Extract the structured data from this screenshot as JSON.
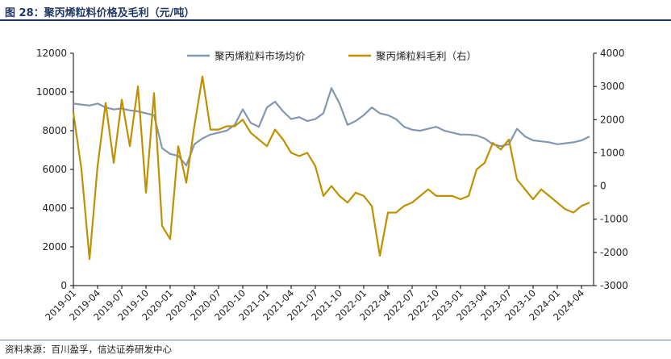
{
  "title": "图 28：聚丙烯粒料价格及毛利（元/吨）",
  "source": "资料来源：百川盈孚，信达证券研发中心",
  "chart_data": {
    "type": "line",
    "title": "图 28：聚丙烯粒料价格及毛利（元/吨）",
    "legend_position": "top",
    "grid": false,
    "x_ticks": [
      "2019-01",
      "2019-04",
      "2019-07",
      "2019-10",
      "2020-01",
      "2020-04",
      "2020-07",
      "2020-10",
      "2021-01",
      "2021-04",
      "2021-07",
      "2021-10",
      "2022-01",
      "2022-04",
      "2022-07",
      "2022-10",
      "2023-01",
      "2023-04",
      "2023-07",
      "2023-10",
      "2024-01",
      "2024-04"
    ],
    "y_left": {
      "min": 0,
      "max": 12000,
      "ticks": [
        0,
        2000,
        4000,
        6000,
        8000,
        10000,
        12000
      ]
    },
    "y_right": {
      "min": -3000,
      "max": 4000,
      "ticks": [
        -3000,
        -2000,
        -1000,
        0,
        1000,
        2000,
        3000,
        4000
      ]
    },
    "series": [
      {
        "name": "聚丙烯粒料市场均价",
        "axis": "left",
        "color": "#8497b0",
        "x": [
          "2019-01",
          "2019-02",
          "2019-03",
          "2019-04",
          "2019-05",
          "2019-06",
          "2019-07",
          "2019-08",
          "2019-09",
          "2019-10",
          "2019-11",
          "2019-12",
          "2020-01",
          "2020-02",
          "2020-03",
          "2020-04",
          "2020-05",
          "2020-06",
          "2020-07",
          "2020-08",
          "2020-09",
          "2020-10",
          "2020-11",
          "2020-12",
          "2021-01",
          "2021-02",
          "2021-03",
          "2021-04",
          "2021-05",
          "2021-06",
          "2021-07",
          "2021-08",
          "2021-09",
          "2021-10",
          "2021-11",
          "2021-12",
          "2022-01",
          "2022-02",
          "2022-03",
          "2022-04",
          "2022-05",
          "2022-06",
          "2022-07",
          "2022-08",
          "2022-09",
          "2022-10",
          "2022-11",
          "2022-12",
          "2023-01",
          "2023-02",
          "2023-03",
          "2023-04",
          "2023-05",
          "2023-06",
          "2023-07",
          "2023-08",
          "2023-09",
          "2023-10",
          "2023-11",
          "2023-12",
          "2024-01",
          "2024-02",
          "2024-03",
          "2024-04",
          "2024-05"
        ],
        "values": [
          9400,
          9350,
          9300,
          9400,
          9200,
          9100,
          9150,
          9050,
          9000,
          8900,
          8800,
          7100,
          6800,
          6700,
          6200,
          7300,
          7600,
          7800,
          7900,
          8000,
          8300,
          9100,
          8400,
          8200,
          9200,
          9500,
          9000,
          8600,
          8700,
          8500,
          8600,
          8900,
          10200,
          9400,
          8300,
          8500,
          8800,
          9200,
          8900,
          8800,
          8600,
          8200,
          8050,
          8000,
          8100,
          8200,
          8000,
          7900,
          7800,
          7800,
          7750,
          7600,
          7300,
          7200,
          7300,
          8100,
          7700,
          7500,
          7450,
          7400,
          7300,
          7350,
          7400,
          7500,
          7700
        ]
      },
      {
        "name": "聚丙烯粒料毛利（右）",
        "axis": "right",
        "color": "#bf9000",
        "x": [
          "2019-01",
          "2019-02",
          "2019-03",
          "2019-04",
          "2019-05",
          "2019-06",
          "2019-07",
          "2019-08",
          "2019-09",
          "2019-10",
          "2019-11",
          "2019-12",
          "2020-01",
          "2020-02",
          "2020-03",
          "2020-04",
          "2020-05",
          "2020-06",
          "2020-07",
          "2020-08",
          "2020-09",
          "2020-10",
          "2020-11",
          "2020-12",
          "2021-01",
          "2021-02",
          "2021-03",
          "2021-04",
          "2021-05",
          "2021-06",
          "2021-07",
          "2021-08",
          "2021-09",
          "2021-10",
          "2021-11",
          "2021-12",
          "2022-01",
          "2022-02",
          "2022-03",
          "2022-04",
          "2022-05",
          "2022-06",
          "2022-07",
          "2022-08",
          "2022-09",
          "2022-10",
          "2022-11",
          "2022-12",
          "2023-01",
          "2023-02",
          "2023-03",
          "2023-04",
          "2023-05",
          "2023-06",
          "2023-07",
          "2023-08",
          "2023-09",
          "2023-10",
          "2023-11",
          "2023-12",
          "2024-01",
          "2024-02",
          "2024-03",
          "2024-04",
          "2024-05"
        ],
        "values": [
          2200,
          500,
          -2200,
          600,
          2500,
          700,
          2600,
          1200,
          3000,
          -200,
          2800,
          -1200,
          -1600,
          1200,
          100,
          1800,
          3300,
          1700,
          1700,
          1800,
          1800,
          2000,
          1600,
          1400,
          1200,
          1700,
          1400,
          1000,
          900,
          1000,
          600,
          -300,
          0,
          -300,
          -500,
          -200,
          -300,
          -600,
          -2100,
          -800,
          -800,
          -600,
          -500,
          -300,
          -100,
          -300,
          -300,
          -300,
          -400,
          -300,
          500,
          700,
          1300,
          1100,
          1400,
          200,
          -100,
          -400,
          -100,
          -300,
          -500,
          -700,
          -800,
          -600,
          -500
        ]
      }
    ]
  }
}
